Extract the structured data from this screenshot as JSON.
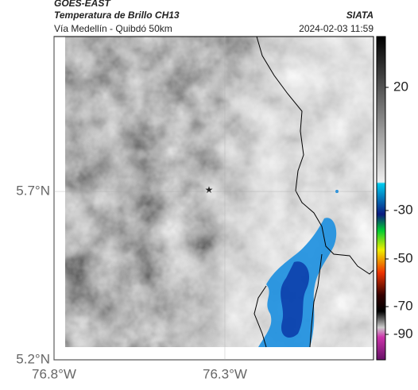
{
  "header": {
    "satellite": "GOES-EAST",
    "product": "Temperatura de Brillo CH13",
    "route": "Vía Medellín - Quibdó 50km",
    "source": "SIATA",
    "timestamp": "2024-02-03 11:59"
  },
  "map": {
    "xlim": [
      -76.8,
      -75.865
    ],
    "ylim": [
      5.2,
      6.16
    ],
    "xticks": [
      {
        "value": -76.8,
        "label": "76.8°W"
      },
      {
        "value": -76.3,
        "label": "76.3°W"
      }
    ],
    "yticks": [
      {
        "value": 5.2,
        "label": "5.2°N"
      },
      {
        "value": 5.7,
        "label": "5.7°N"
      }
    ]
  },
  "colorbar": {
    "ticks": [
      20,
      -30,
      -50,
      -70,
      -90
    ]
  }
}
